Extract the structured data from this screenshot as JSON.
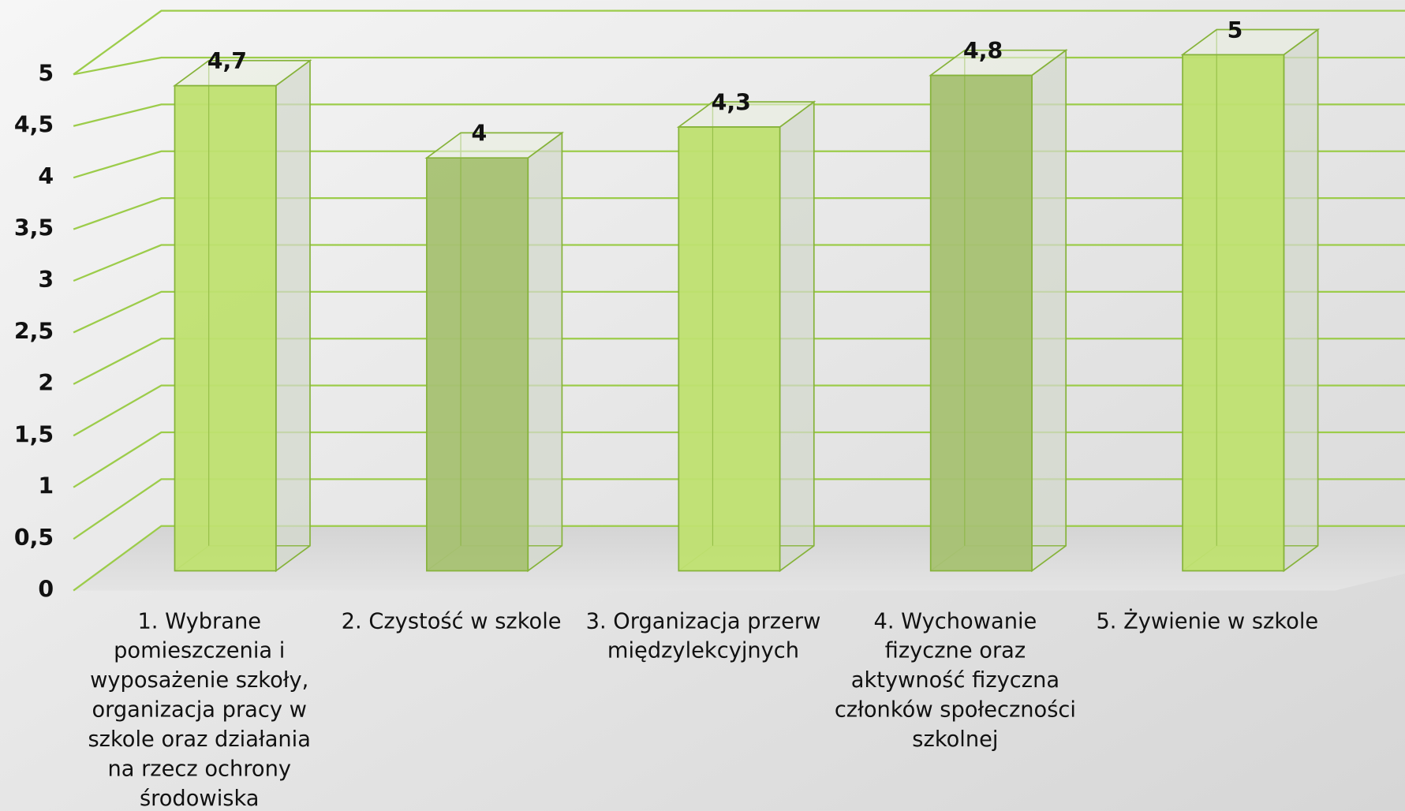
{
  "chart_data": {
    "type": "bar3d",
    "categories": [
      "1. Wybrane pomieszczenia i wyposażenie szkoły, organizacja pracy w szkole oraz działania na rzecz ochrony środowiska",
      "2. Czystość w szkole",
      "3. Organizacja przerw międzylekcyjnych",
      "4. Wychowanie fizyczne oraz aktywność fizyczna członków społeczności szkolnej",
      "5. Żywienie w szkole"
    ],
    "values": [
      4.7,
      4,
      4.3,
      4.8,
      5
    ],
    "value_labels": [
      "4,7",
      "4",
      "4,3",
      "4,8",
      "5"
    ],
    "colors": [
      "#bfe070",
      "#a6c172",
      "#bfe070",
      "#a6c172",
      "#bfe070"
    ],
    "ylim": [
      0,
      5.5
    ],
    "yticks": [
      0,
      {
        "value": 0.5,
        "label": "0,5"
      },
      1,
      {
        "value": 1.5,
        "label": "1,5"
      },
      2,
      {
        "value": 2.5,
        "label": "2,5"
      },
      3,
      {
        "value": 3.5,
        "label": "3,5"
      },
      4,
      {
        "value": 4.5,
        "label": "4,5"
      },
      5
    ],
    "grid": true
  }
}
